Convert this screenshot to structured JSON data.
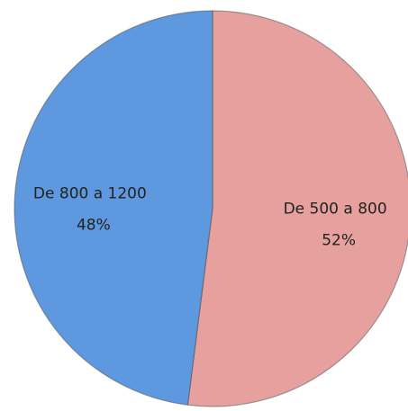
{
  "chart_data": {
    "type": "pie",
    "categories": [
      "De 500 a 800",
      "De 800 a 1200"
    ],
    "values": [
      52,
      48
    ],
    "value_labels": [
      "52%",
      "48%"
    ],
    "colors": [
      "#e6a19f",
      "#5e98de"
    ]
  }
}
